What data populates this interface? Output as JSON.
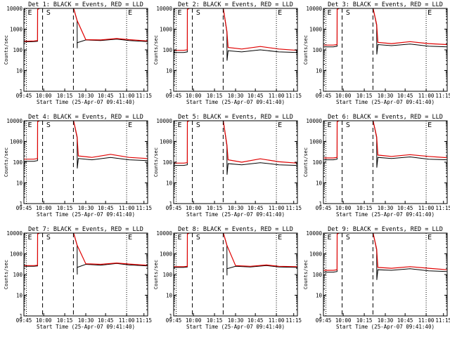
{
  "chart_data": [
    {
      "type": "line",
      "title": "Det 1: BLACK = Events, RED = LLD",
      "xlabel": "Start Time (25-Apr-07 09:41:40)",
      "ylabel": "Counts/sec",
      "yscale": "log",
      "ylim": [
        1,
        10000
      ],
      "xticks": [
        "09:45",
        "10:00",
        "10:15",
        "10:30",
        "10:45",
        "11:00",
        "11:15"
      ],
      "yticks": [
        "1",
        "10",
        "100",
        "1000",
        "10000"
      ],
      "markers": [
        "E",
        "S",
        "E"
      ],
      "series": [
        {
          "color": "#000000",
          "x": [
            0,
            0.08,
            0.11,
            0.111,
            0.14,
            0.19,
            0.4,
            0.43,
            0.431,
            0.43,
            0.5,
            0.62,
            0.75,
            0.85,
            1.0
          ],
          "y": [
            240,
            250,
            260,
            9000,
            12000,
            12000,
            11000,
            2600,
            120,
            220,
            300,
            280,
            330,
            280,
            250
          ]
        },
        {
          "color": "#e00000",
          "x": [
            0,
            0.08,
            0.11,
            0.111,
            0.14,
            0.19,
            0.4,
            0.43,
            0.5,
            0.62,
            0.75,
            0.85,
            1.0
          ],
          "y": [
            260,
            270,
            280,
            9000,
            12000,
            12000,
            11000,
            2600,
            310,
            300,
            350,
            310,
            270
          ]
        }
      ]
    },
    {
      "type": "line",
      "title": "Det 2: BLACK = Events, RED = LLD",
      "xlabel": "Start Time (25-Apr-07 09:41:40)",
      "ylabel": "Counts/sec",
      "yscale": "log",
      "ylim": [
        1,
        10000
      ],
      "xticks": [
        "09:45",
        "10:00",
        "10:15",
        "10:30",
        "10:45",
        "11:00",
        "11:15"
      ],
      "yticks": [
        "1",
        "10",
        "100",
        "1000",
        "10000"
      ],
      "markers": [
        "E",
        "S",
        "E"
      ],
      "series": [
        {
          "color": "#000000",
          "x": [
            0,
            0.08,
            0.11,
            0.111,
            0.14,
            0.19,
            0.4,
            0.43,
            0.431,
            0.44,
            0.55,
            0.7,
            0.85,
            1.0
          ],
          "y": [
            75,
            75,
            80,
            9000,
            12000,
            12000,
            11000,
            700,
            30,
            90,
            80,
            100,
            80,
            75
          ]
        },
        {
          "color": "#e00000",
          "x": [
            0,
            0.08,
            0.11,
            0.111,
            0.14,
            0.19,
            0.4,
            0.43,
            0.44,
            0.55,
            0.7,
            0.85,
            1.0
          ],
          "y": [
            95,
            95,
            100,
            9000,
            12000,
            12000,
            11000,
            800,
            130,
            110,
            145,
            110,
            95
          ]
        }
      ]
    },
    {
      "type": "line",
      "title": "Det 3: BLACK = Events, RED = LLD",
      "xlabel": "Start Time (25-Apr-07 09:41:40)",
      "ylabel": "Counts/sec",
      "yscale": "log",
      "ylim": [
        1,
        10000
      ],
      "xticks": [
        "09:45",
        "10:00",
        "10:15",
        "10:30",
        "10:45",
        "11:00",
        "11:15"
      ],
      "yticks": [
        "1",
        "10",
        "100",
        "1000",
        "10000"
      ],
      "markers": [
        "E",
        "S",
        "E"
      ],
      "series": [
        {
          "color": "#000000",
          "x": [
            0,
            0.08,
            0.11,
            0.111,
            0.14,
            0.19,
            0.4,
            0.43,
            0.431,
            0.44,
            0.55,
            0.7,
            0.85,
            1.0
          ],
          "y": [
            140,
            140,
            150,
            9000,
            12000,
            12000,
            11000,
            1500,
            60,
            180,
            160,
            190,
            150,
            140
          ]
        },
        {
          "color": "#e00000",
          "x": [
            0,
            0.08,
            0.11,
            0.111,
            0.14,
            0.19,
            0.4,
            0.43,
            0.44,
            0.55,
            0.7,
            0.85,
            1.0
          ],
          "y": [
            170,
            170,
            180,
            9000,
            12000,
            12000,
            11000,
            1700,
            230,
            200,
            250,
            200,
            180
          ]
        }
      ]
    },
    {
      "type": "line",
      "title": "Det 4: BLACK = Events, RED = LLD",
      "xlabel": "Start Time (25-Apr-07 09:41:40)",
      "ylabel": "Counts/sec",
      "yscale": "log",
      "ylim": [
        1,
        10000
      ],
      "xticks": [
        "09:45",
        "10:00",
        "10:15",
        "10:30",
        "10:45",
        "11:00",
        "11:15"
      ],
      "yticks": [
        "1",
        "10",
        "100",
        "1000",
        "10000"
      ],
      "markers": [
        "E",
        "S",
        "E"
      ],
      "series": [
        {
          "color": "#000000",
          "x": [
            0,
            0.08,
            0.11,
            0.111,
            0.14,
            0.19,
            0.4,
            0.43,
            0.431,
            0.44,
            0.55,
            0.7,
            0.85,
            1.0
          ],
          "y": [
            110,
            110,
            120,
            9000,
            12000,
            12000,
            11000,
            1500,
            50,
            150,
            130,
            170,
            130,
            120
          ]
        },
        {
          "color": "#e00000",
          "x": [
            0,
            0.08,
            0.11,
            0.111,
            0.14,
            0.19,
            0.4,
            0.43,
            0.44,
            0.55,
            0.7,
            0.85,
            1.0
          ],
          "y": [
            140,
            140,
            150,
            9000,
            12000,
            12000,
            11000,
            1700,
            200,
            170,
            240,
            170,
            150
          ]
        }
      ]
    },
    {
      "type": "line",
      "title": "Det 5: BLACK = Events, RED = LLD",
      "xlabel": "Start Time (25-Apr-07 09:41:40)",
      "ylabel": "Counts/sec",
      "yscale": "log",
      "ylim": [
        1,
        10000
      ],
      "xticks": [
        "09:45",
        "10:00",
        "10:15",
        "10:30",
        "10:45",
        "11:00",
        "11:15"
      ],
      "yticks": [
        "1",
        "10",
        "100",
        "1000",
        "10000"
      ],
      "markers": [
        "E",
        "S",
        "E"
      ],
      "series": [
        {
          "color": "#000000",
          "x": [
            0,
            0.08,
            0.11,
            0.111,
            0.14,
            0.19,
            0.4,
            0.43,
            0.431,
            0.44,
            0.55,
            0.7,
            0.85,
            1.0
          ],
          "y": [
            70,
            70,
            75,
            9000,
            12000,
            12000,
            11000,
            600,
            25,
            85,
            75,
            95,
            75,
            70
          ]
        },
        {
          "color": "#e00000",
          "x": [
            0,
            0.08,
            0.11,
            0.111,
            0.14,
            0.19,
            0.4,
            0.43,
            0.44,
            0.55,
            0.7,
            0.85,
            1.0
          ],
          "y": [
            90,
            90,
            95,
            9000,
            12000,
            12000,
            11000,
            700,
            130,
            100,
            145,
            105,
            90
          ]
        }
      ]
    },
    {
      "type": "line",
      "title": "Det 6: BLACK = Events, RED = LLD",
      "xlabel": "Start Time (25-Apr-07 09:41:40)",
      "ylabel": "Counts/sec",
      "yscale": "log",
      "ylim": [
        1,
        10000
      ],
      "xticks": [
        "09:45",
        "10:00",
        "10:15",
        "10:30",
        "10:45",
        "11:00",
        "11:15"
      ],
      "yticks": [
        "1",
        "10",
        "100",
        "1000",
        "10000"
      ],
      "markers": [
        "E",
        "S",
        "E"
      ],
      "series": [
        {
          "color": "#000000",
          "x": [
            0,
            0.08,
            0.11,
            0.111,
            0.14,
            0.19,
            0.4,
            0.43,
            0.431,
            0.44,
            0.55,
            0.7,
            0.85,
            1.0
          ],
          "y": [
            130,
            130,
            140,
            9000,
            12000,
            12000,
            11000,
            1500,
            55,
            170,
            150,
            180,
            140,
            130
          ]
        },
        {
          "color": "#e00000",
          "x": [
            0,
            0.08,
            0.11,
            0.111,
            0.14,
            0.19,
            0.4,
            0.43,
            0.44,
            0.55,
            0.7,
            0.85,
            1.0
          ],
          "y": [
            160,
            160,
            170,
            9000,
            12000,
            12000,
            11000,
            1700,
            220,
            190,
            230,
            190,
            165
          ]
        }
      ]
    },
    {
      "type": "line",
      "title": "Det 7: BLACK = Events, RED = LLD",
      "xlabel": "Start Time (25-Apr-07 09:41:40)",
      "ylabel": "Counts/sec",
      "yscale": "log",
      "ylim": [
        1,
        10000
      ],
      "xticks": [
        "09:45",
        "10:00",
        "10:15",
        "10:30",
        "10:45",
        "11:00",
        "11:15"
      ],
      "yticks": [
        "1",
        "10",
        "100",
        "1000",
        "10000"
      ],
      "markers": [
        "E",
        "S",
        "E"
      ],
      "series": [
        {
          "color": "#000000",
          "x": [
            0,
            0.08,
            0.11,
            0.111,
            0.14,
            0.19,
            0.4,
            0.43,
            0.431,
            0.43,
            0.5,
            0.62,
            0.75,
            0.85,
            1.0
          ],
          "y": [
            250,
            250,
            260,
            9000,
            12000,
            12000,
            11000,
            2600,
            100,
            220,
            310,
            280,
            340,
            290,
            260
          ]
        },
        {
          "color": "#e00000",
          "x": [
            0,
            0.08,
            0.11,
            0.111,
            0.14,
            0.19,
            0.4,
            0.43,
            0.5,
            0.62,
            0.75,
            0.85,
            1.0
          ],
          "y": [
            270,
            270,
            280,
            9000,
            12000,
            12000,
            11000,
            2600,
            330,
            310,
            360,
            320,
            280
          ]
        }
      ]
    },
    {
      "type": "line",
      "title": "Det 8: BLACK = Events, RED = LLD",
      "xlabel": "Start Time (25-Apr-07 09:41:40)",
      "ylabel": "Counts/sec",
      "yscale": "log",
      "ylim": [
        1,
        10000
      ],
      "xticks": [
        "09:45",
        "10:00",
        "10:15",
        "10:30",
        "10:45",
        "11:00",
        "11:15"
      ],
      "yticks": [
        "1",
        "10",
        "100",
        "1000",
        "10000"
      ],
      "markers": [
        "E",
        "S",
        "E"
      ],
      "series": [
        {
          "color": "#000000",
          "x": [
            0,
            0.08,
            0.11,
            0.111,
            0.14,
            0.19,
            0.4,
            0.43,
            0.431,
            0.43,
            0.5,
            0.62,
            0.75,
            0.85,
            1.0
          ],
          "y": [
            220,
            220,
            230,
            9000,
            12000,
            12000,
            11000,
            2600,
            90,
            190,
            250,
            230,
            270,
            230,
            220
          ]
        },
        {
          "color": "#e00000",
          "x": [
            0,
            0.08,
            0.11,
            0.111,
            0.14,
            0.19,
            0.4,
            0.43,
            0.5,
            0.62,
            0.75,
            0.85,
            1.0
          ],
          "y": [
            240,
            240,
            250,
            9000,
            12000,
            12000,
            11000,
            2600,
            270,
            250,
            290,
            250,
            240
          ]
        }
      ]
    },
    {
      "type": "line",
      "title": "Det 9: BLACK = Events, RED = LLD",
      "xlabel": "Start Time (25-Apr-07 09:41:40)",
      "ylabel": "Counts/sec",
      "yscale": "log",
      "ylim": [
        1,
        10000
      ],
      "xticks": [
        "09:45",
        "10:00",
        "10:15",
        "10:30",
        "10:45",
        "11:00",
        "11:15"
      ],
      "yticks": [
        "1",
        "10",
        "100",
        "1000",
        "10000"
      ],
      "markers": [
        "E",
        "S",
        "E"
      ],
      "series": [
        {
          "color": "#000000",
          "x": [
            0,
            0.08,
            0.11,
            0.111,
            0.14,
            0.19,
            0.4,
            0.43,
            0.431,
            0.44,
            0.55,
            0.7,
            0.85,
            1.0
          ],
          "y": [
            130,
            130,
            140,
            9000,
            12000,
            12000,
            11000,
            1500,
            55,
            170,
            160,
            190,
            150,
            140
          ]
        },
        {
          "color": "#e00000",
          "x": [
            0,
            0.08,
            0.11,
            0.111,
            0.14,
            0.19,
            0.4,
            0.43,
            0.44,
            0.55,
            0.7,
            0.85,
            1.0
          ],
          "y": [
            160,
            160,
            170,
            9000,
            12000,
            12000,
            11000,
            1700,
            220,
            200,
            240,
            200,
            170
          ]
        }
      ]
    }
  ],
  "figure": {
    "axis_color": "#000000",
    "event_color": "#000000",
    "lld_color": "#e00000"
  }
}
